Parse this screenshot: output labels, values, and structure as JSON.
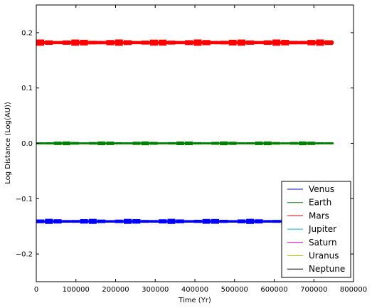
{
  "chart_data": {
    "type": "line",
    "xlabel": "Time (Yr)",
    "ylabel": "Log Distance (Log(AU))",
    "xlim": [
      0,
      800000
    ],
    "ylim": [
      -0.25,
      0.25
    ],
    "x_ticks": [
      0,
      100000,
      200000,
      300000,
      400000,
      500000,
      600000,
      700000,
      800000
    ],
    "x_tick_labels": [
      "0",
      "100000",
      "200000",
      "300000",
      "400000",
      "500000",
      "600000",
      "700000",
      "800000"
    ],
    "y_ticks": [
      -0.2,
      -0.1,
      0.0,
      0.1,
      0.2
    ],
    "y_tick_labels": [
      "−0.2",
      "−0.1",
      "0.0",
      "0.1",
      "0.2"
    ],
    "grid": false,
    "legend_position": "lower-right",
    "series": [
      {
        "name": "Venus",
        "color": "#0000ff",
        "x_range": [
          0,
          750000
        ],
        "level": -0.141,
        "amplitude": 0.004
      },
      {
        "name": "Earth",
        "color": "#008000",
        "x_range": [
          0,
          750000
        ],
        "level": 0.0,
        "amplitude": 0.003
      },
      {
        "name": "Mars",
        "color": "#ff0000",
        "x_range": [
          0,
          750000
        ],
        "level": 0.182,
        "amplitude": 0.005
      },
      {
        "name": "Jupiter",
        "color": "#00bfbf",
        "x_range": null,
        "level": null,
        "amplitude": null
      },
      {
        "name": "Saturn",
        "color": "#bf00bf",
        "x_range": null,
        "level": null,
        "amplitude": null
      },
      {
        "name": "Uranus",
        "color": "#bfbf00",
        "x_range": null,
        "level": null,
        "amplitude": null
      },
      {
        "name": "Neptune",
        "color": "#000000",
        "x_range": null,
        "level": null,
        "amplitude": null
      }
    ]
  }
}
